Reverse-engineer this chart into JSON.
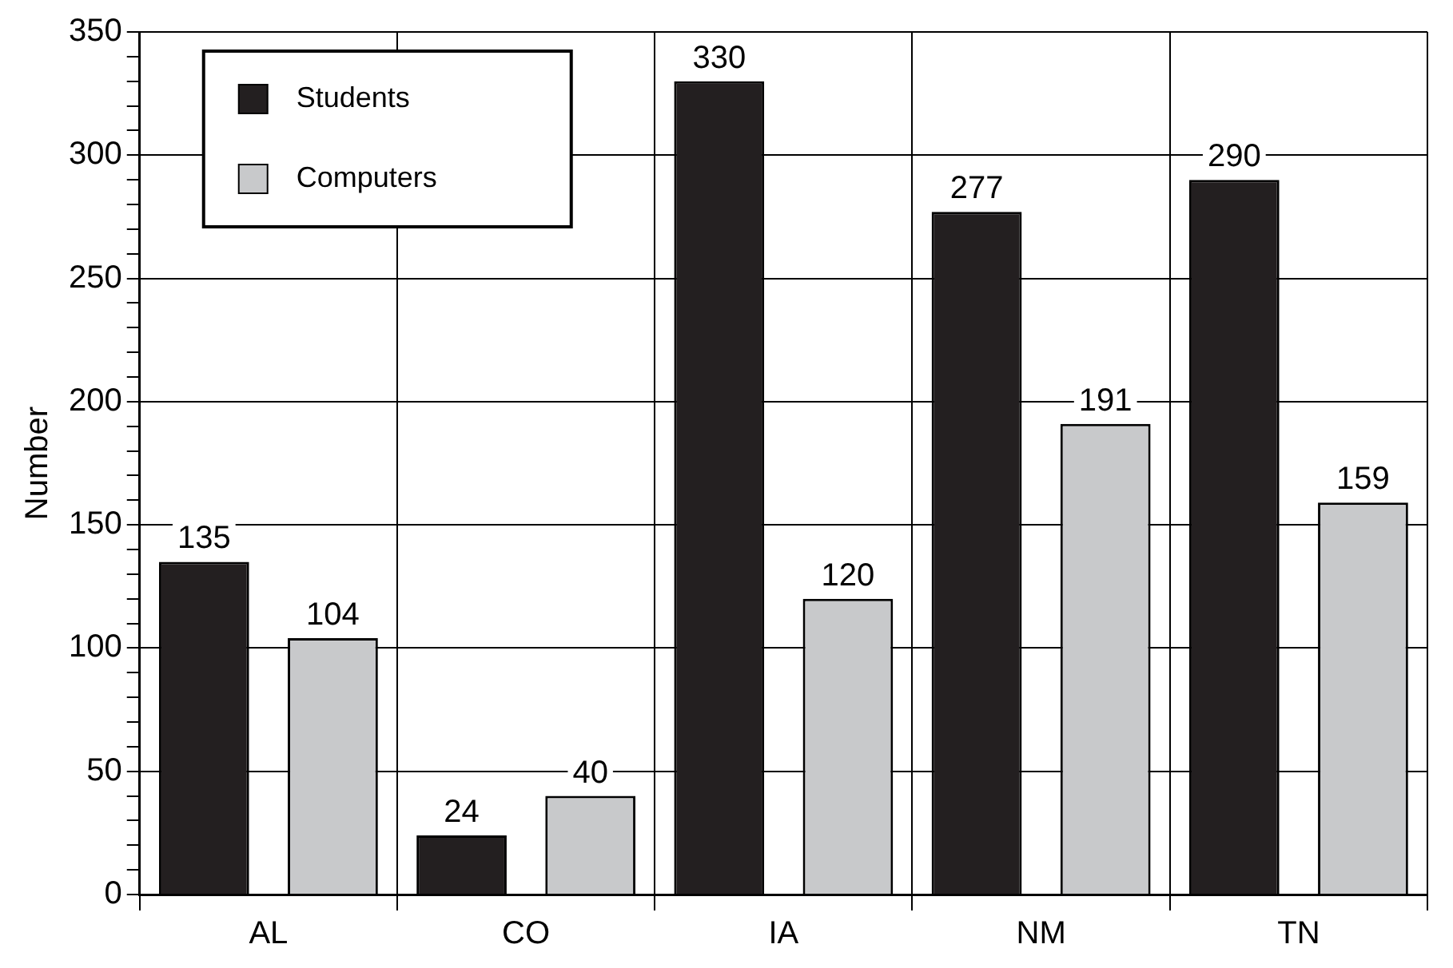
{
  "chart_data": {
    "type": "bar",
    "ylabel": "Number",
    "categories": [
      "AL",
      "CO",
      "IA",
      "NM",
      "TN"
    ],
    "series": [
      {
        "name": "Students",
        "color": "#231f20",
        "values": [
          135,
          24,
          330,
          277,
          290
        ]
      },
      {
        "name": "Computers",
        "color": "#c8c9cb",
        "values": [
          104,
          40,
          120,
          191,
          159
        ]
      }
    ],
    "ylim": [
      0,
      350
    ],
    "yticks": [
      0,
      {
        "value": 10,
        "label": null
      },
      {
        "value": 20,
        "label": null
      },
      {
        "value": 30,
        "label": null
      },
      {
        "value": 40,
        "label": null
      },
      50,
      {
        "value": 60,
        "label": null
      },
      {
        "value": 70,
        "label": null
      },
      {
        "value": 80,
        "label": null
      },
      {
        "value": 90,
        "label": null
      },
      100,
      {
        "value": 110,
        "label": null
      },
      {
        "value": 120,
        "label": null
      },
      {
        "value": 130,
        "label": null
      },
      {
        "value": 140,
        "label": null
      },
      150,
      {
        "value": 160,
        "label": null
      },
      {
        "value": 170,
        "label": null
      },
      {
        "value": 180,
        "label": null
      },
      {
        "value": 190,
        "label": null
      },
      200,
      {
        "value": 210,
        "label": null
      },
      {
        "value": 220,
        "label": null
      },
      {
        "value": 230,
        "label": null
      },
      {
        "value": 240,
        "label": null
      },
      250,
      {
        "value": 260,
        "label": null
      },
      {
        "value": 270,
        "label": null
      },
      {
        "value": 280,
        "label": null
      },
      {
        "value": 290,
        "label": null
      },
      300,
      {
        "value": 310,
        "label": null
      },
      {
        "value": 320,
        "label": null
      },
      {
        "value": 330,
        "label": null
      },
      {
        "value": 340,
        "label": null
      },
      350
    ],
    "grid": true,
    "legend": "top left",
    "data_labels": true
  }
}
